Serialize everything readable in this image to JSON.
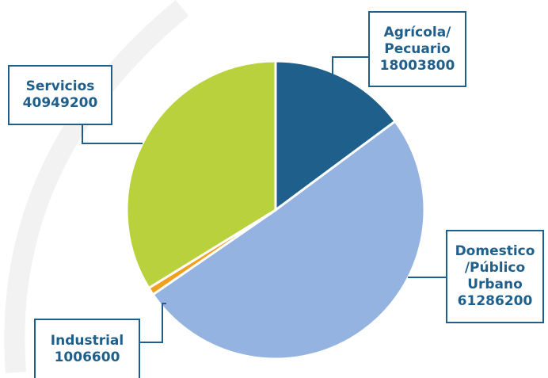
{
  "chart_data": {
    "type": "pie",
    "slices": [
      {
        "label": "Agrícola/ Pecuario",
        "label_lines": [
          "Agrícola/",
          "Pecuario"
        ],
        "value": 18003800,
        "value_text": "18003800",
        "color": "#1f5f8b"
      },
      {
        "label": "Domestico /Público Urbano",
        "label_lines": [
          "Domestico",
          "/Público",
          "Urbano"
        ],
        "value": 61286200,
        "value_text": "61286200",
        "color": "#95b3e0"
      },
      {
        "label": "Industrial",
        "label_lines": [
          "Industrial"
        ],
        "value": 1006600,
        "value_text": "1006600",
        "color": "#f0a01e"
      },
      {
        "label": "Servicios",
        "label_lines": [
          "Servicios"
        ],
        "value": 40949200,
        "value_text": "40949200",
        "color": "#b8d13c"
      }
    ],
    "start_angle": "12 o'clock",
    "direction": "clockwise",
    "slice_border_color": "#ffffff",
    "leader_line_color": "#1f5f8b",
    "label_box_border_color": "#1f5f8b",
    "label_text_color": "#1f5f8b"
  }
}
